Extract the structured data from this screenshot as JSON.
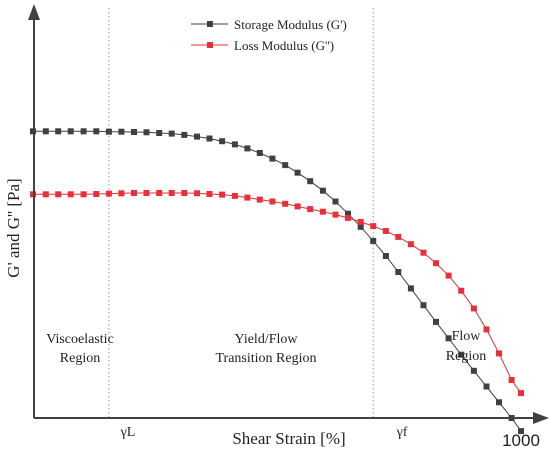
{
  "chart_data": {
    "type": "line",
    "xlabel": "Shear Strain [%]",
    "ylabel": "G' and G'' [Pa]",
    "x_scale": "log",
    "y_axis_ticks_shown": false,
    "x_tick_labels": [
      "γL",
      "γf",
      "1000"
    ],
    "legend": {
      "placement": "top-center"
    },
    "series": [
      {
        "name": "Storage Modulus (G')",
        "color": "#404040",
        "marker": "square",
        "points": [
          [
            0.5,
            0.874
          ],
          [
            0.61,
            0.874
          ],
          [
            0.74,
            0.874
          ],
          [
            0.9,
            0.874
          ],
          [
            1.1,
            0.874
          ],
          [
            1.34,
            0.874
          ],
          [
            1.63,
            0.873
          ],
          [
            1.98,
            0.873
          ],
          [
            2.41,
            0.872
          ],
          [
            2.93,
            0.871
          ],
          [
            3.57,
            0.869
          ],
          [
            4.34,
            0.867
          ],
          [
            5.28,
            0.863
          ],
          [
            6.43,
            0.858
          ],
          [
            7.82,
            0.852
          ],
          [
            9.51,
            0.844
          ],
          [
            11.6,
            0.834
          ],
          [
            14.1,
            0.822
          ],
          [
            17.1,
            0.808
          ],
          [
            20.8,
            0.791
          ],
          [
            25.4,
            0.771
          ],
          [
            30.8,
            0.748
          ],
          [
            37.5,
            0.722
          ],
          [
            45.7,
            0.693
          ],
          [
            55.6,
            0.66
          ],
          [
            67.6,
            0.623
          ],
          [
            82.3,
            0.583
          ],
          [
            100,
            0.54
          ],
          [
            122,
            0.494
          ],
          [
            148,
            0.445
          ],
          [
            180,
            0.395
          ],
          [
            219,
            0.344
          ],
          [
            266,
            0.293
          ],
          [
            324,
            0.243
          ],
          [
            394,
            0.193
          ],
          [
            480,
            0.144
          ],
          [
            584,
            0.096
          ],
          [
            710,
            0.048
          ],
          [
            864,
            0.0
          ],
          [
            1000,
            -0.04
          ]
        ]
      },
      {
        "name": "Loss Modulus (G'')",
        "color": "#e8303a",
        "marker": "square",
        "points": [
          [
            0.5,
            0.682
          ],
          [
            0.61,
            0.682
          ],
          [
            0.74,
            0.682
          ],
          [
            0.9,
            0.682
          ],
          [
            1.1,
            0.682
          ],
          [
            1.34,
            0.683
          ],
          [
            1.63,
            0.684
          ],
          [
            1.98,
            0.685
          ],
          [
            2.41,
            0.686
          ],
          [
            2.93,
            0.686
          ],
          [
            3.57,
            0.686
          ],
          [
            4.34,
            0.686
          ],
          [
            5.28,
            0.686
          ],
          [
            6.43,
            0.685
          ],
          [
            7.82,
            0.683
          ],
          [
            9.51,
            0.681
          ],
          [
            11.6,
            0.677
          ],
          [
            14.1,
            0.672
          ],
          [
            17.1,
            0.666
          ],
          [
            20.8,
            0.66
          ],
          [
            25.4,
            0.653
          ],
          [
            30.8,
            0.645
          ],
          [
            37.5,
            0.637
          ],
          [
            45.7,
            0.629
          ],
          [
            55.6,
            0.62
          ],
          [
            67.6,
            0.61
          ],
          [
            82.3,
            0.598
          ],
          [
            100,
            0.585
          ],
          [
            122,
            0.57
          ],
          [
            148,
            0.552
          ],
          [
            180,
            0.53
          ],
          [
            219,
            0.504
          ],
          [
            266,
            0.472
          ],
          [
            324,
            0.434
          ],
          [
            394,
            0.388
          ],
          [
            480,
            0.334
          ],
          [
            584,
            0.27
          ],
          [
            710,
            0.197
          ],
          [
            864,
            0.116
          ],
          [
            1000,
            0.076
          ]
        ]
      }
    ],
    "reference_lines": [
      {
        "label": "γL",
        "x": 1.63
      },
      {
        "label": "γf",
        "x": 100
      }
    ],
    "annotations": [
      {
        "lines": [
          "Viscoelastic",
          "Region"
        ]
      },
      {
        "lines": [
          "Yield/Flow",
          "Transition Region"
        ]
      },
      {
        "lines": [
          "Flow",
          "Region"
        ]
      }
    ]
  }
}
